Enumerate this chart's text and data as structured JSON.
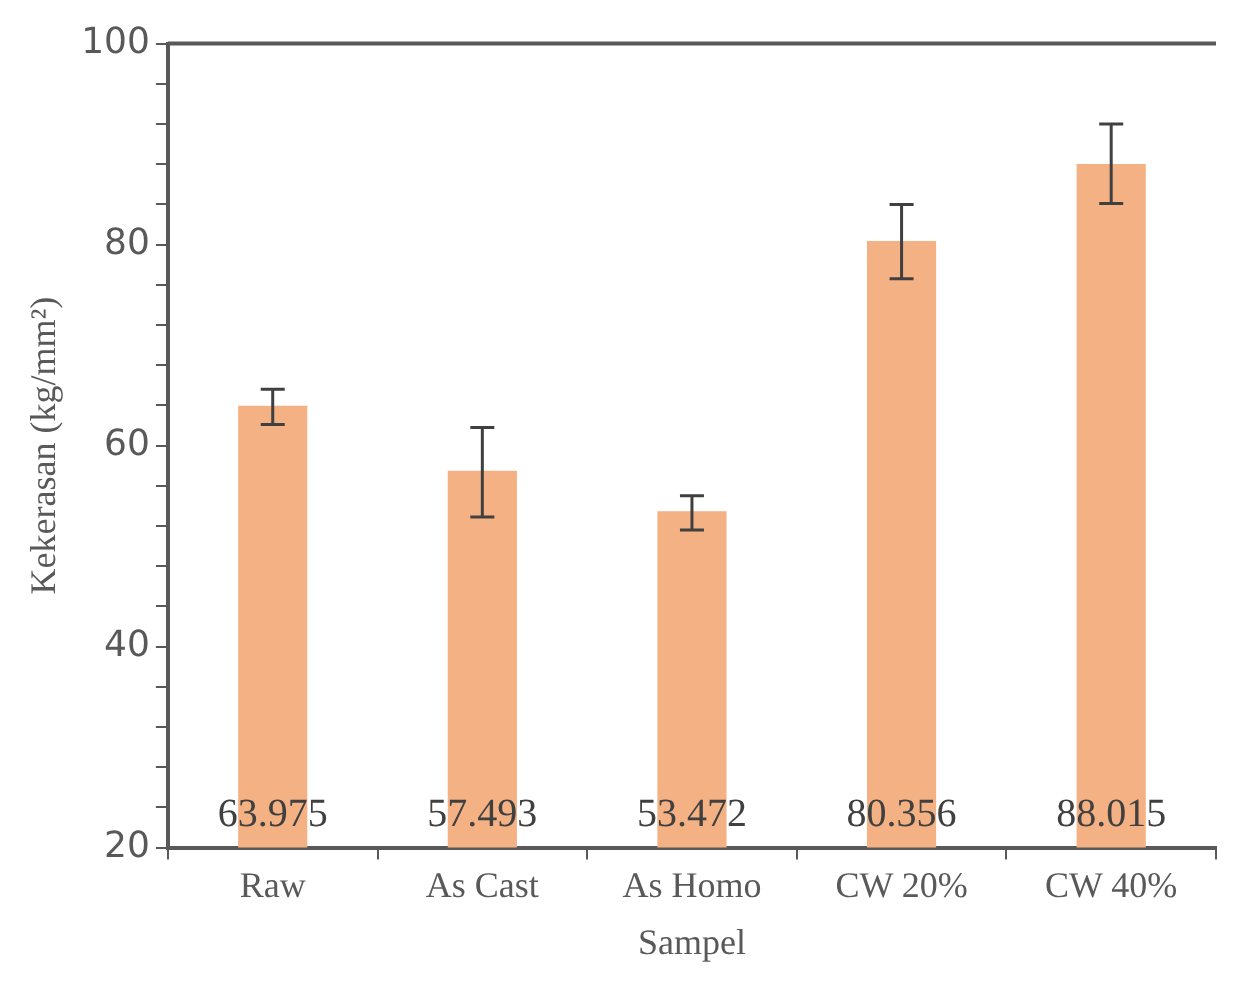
{
  "chart_data": {
    "type": "bar",
    "xlabel": "Sampel",
    "ylabel": "Kekerasan (kg/mm²)",
    "categories": [
      "Raw",
      "As Cast",
      "As Homo",
      "CW 20%",
      "CW 40%"
    ],
    "values": [
      63.975,
      57.493,
      53.472,
      80.356,
      88.015
    ],
    "errors": [
      [
        62.1,
        65.6
      ],
      [
        52.9,
        61.8
      ],
      [
        51.6,
        55.0
      ],
      [
        76.6,
        84.0
      ],
      [
        84.1,
        92.0
      ]
    ],
    "color": "#f4b183",
    "data_labels": true,
    "grid": false,
    "legend": false,
    "ylim": [
      20,
      100
    ],
    "yticks": [
      20,
      {
        "value": 24,
        "label": null
      },
      {
        "value": 28,
        "label": null
      },
      {
        "value": 32,
        "label": null
      },
      {
        "value": 36,
        "label": null
      },
      40,
      {
        "value": 44,
        "label": null
      },
      {
        "value": 48,
        "label": null
      },
      {
        "value": 52,
        "label": null
      },
      {
        "value": 56,
        "label": null
      },
      60,
      {
        "value": 64,
        "label": null
      },
      {
        "value": 68,
        "label": null
      },
      {
        "value": 72,
        "label": null
      },
      {
        "value": 76,
        "label": null
      },
      80,
      {
        "value": 84,
        "label": null
      },
      {
        "value": 88,
        "label": null
      },
      {
        "value": 92,
        "label": null
      },
      {
        "value": 96,
        "label": null
      },
      100
    ]
  }
}
